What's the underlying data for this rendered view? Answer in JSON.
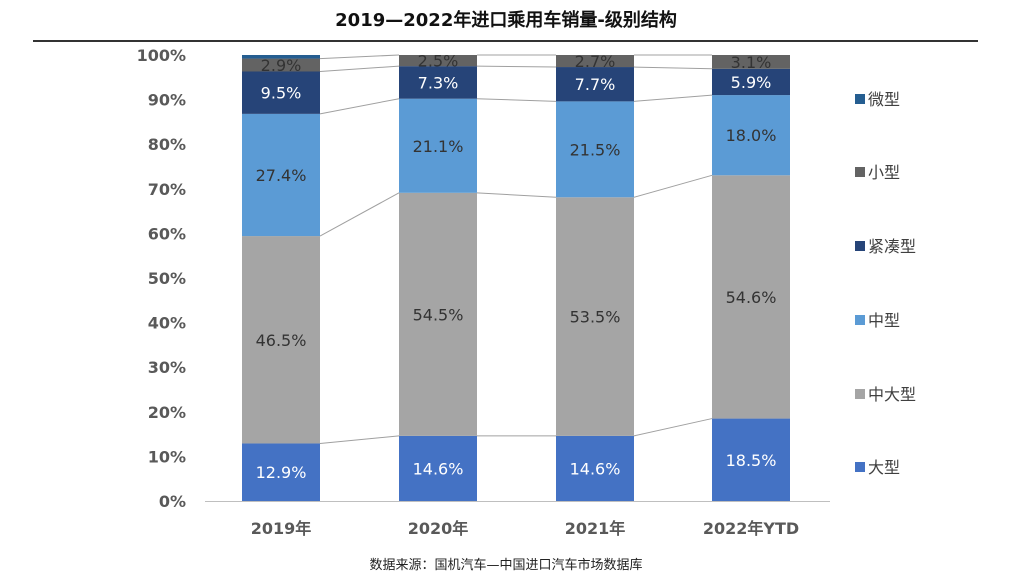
{
  "chart_data": {
    "type": "bar",
    "stacked": true,
    "percent": true,
    "title": "2019—2022年进口乘用车销量-级别结构",
    "source": "数据来源：国机汽车—中国进口汽车市场数据库",
    "categories": [
      "2019年",
      "2020年",
      "2021年",
      "2022年YTD"
    ],
    "yticks": [
      "0%",
      "10%",
      "20%",
      "30%",
      "40%",
      "50%",
      "60%",
      "70%",
      "80%",
      "90%",
      "100%"
    ],
    "ylim": [
      0,
      100
    ],
    "grid": false,
    "legend_position": "right",
    "series": [
      {
        "name": "大型",
        "color": "#4472C4",
        "label_color": "#ffffff",
        "values": [
          12.9,
          14.6,
          14.6,
          18.5
        ],
        "labels": [
          "12.9%",
          "14.6%",
          "14.6%",
          "18.5%"
        ]
      },
      {
        "name": "中大型",
        "color": "#A5A5A5",
        "label_color": "#333333",
        "values": [
          46.5,
          54.5,
          53.5,
          54.6
        ],
        "labels": [
          "46.5%",
          "54.5%",
          "53.5%",
          "54.6%"
        ]
      },
      {
        "name": "中型",
        "color": "#5B9BD5",
        "label_color": "#333333",
        "values": [
          27.4,
          21.1,
          21.5,
          18.0
        ],
        "labels": [
          "27.4%",
          "21.1%",
          "21.5%",
          "18.0%"
        ]
      },
      {
        "name": "紧凑型",
        "color": "#264478",
        "label_color": "#ffffff",
        "values": [
          9.5,
          7.3,
          7.7,
          5.9
        ],
        "labels": [
          "9.5%",
          "7.3%",
          "7.7%",
          "5.9%"
        ]
      },
      {
        "name": "小型",
        "color": "#636363",
        "label_color": "#333333",
        "values": [
          2.9,
          2.5,
          2.7,
          3.1
        ],
        "labels": [
          "2.9%",
          "2.5%",
          "2.7%",
          "3.1%"
        ]
      },
      {
        "name": "微型",
        "color": "#255E91",
        "label_color": "#333333",
        "values": [
          0.8,
          0.0,
          0.0,
          0.0
        ],
        "labels": []
      }
    ],
    "legend_order": [
      "微型",
      "小型",
      "紧凑型",
      "中型",
      "中大型",
      "大型"
    ]
  }
}
